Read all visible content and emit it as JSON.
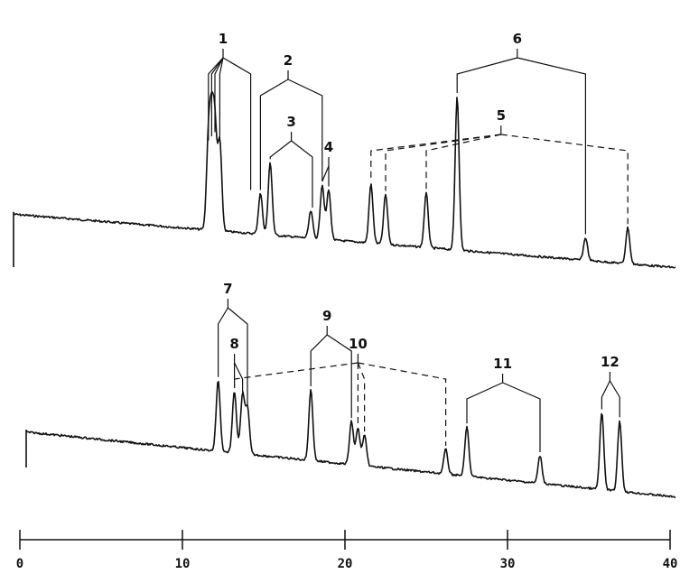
{
  "chart_data": {
    "type": "line",
    "description_axis": "retention time",
    "xlabel": "",
    "ylabel": "",
    "xlim": [
      0,
      40
    ],
    "x_ticks": [
      0,
      10,
      20,
      30,
      40
    ],
    "x_tick_labels": [
      "0",
      "10",
      "20",
      "30",
      "40"
    ],
    "grid": false,
    "traces": [
      {
        "name": "",
        "panel": "top",
        "peaks": [
          {
            "x": 11.6,
            "height": 0.38
          },
          {
            "x": 11.8,
            "height": 0.4
          },
          {
            "x": 12.0,
            "height": 0.42
          },
          {
            "x": 12.3,
            "height": 0.39
          },
          {
            "x": 14.8,
            "height": 0.18
          },
          {
            "x": 15.4,
            "height": 0.32
          },
          {
            "x": 17.9,
            "height": 0.12
          },
          {
            "x": 18.6,
            "height": 0.24
          },
          {
            "x": 19.0,
            "height": 0.22
          },
          {
            "x": 21.6,
            "height": 0.26
          },
          {
            "x": 22.5,
            "height": 0.22
          },
          {
            "x": 25.0,
            "height": 0.24
          },
          {
            "x": 26.9,
            "height": 0.68
          },
          {
            "x": 34.8,
            "height": 0.1
          },
          {
            "x": 37.4,
            "height": 0.16
          }
        ]
      },
      {
        "name": "",
        "panel": "bottom",
        "peaks": [
          {
            "x": 12.2,
            "height": 0.46
          },
          {
            "x": 13.2,
            "height": 0.4
          },
          {
            "x": 13.7,
            "height": 0.38
          },
          {
            "x": 14.0,
            "height": 0.3
          },
          {
            "x": 17.9,
            "height": 0.46
          },
          {
            "x": 20.4,
            "height": 0.28
          },
          {
            "x": 20.8,
            "height": 0.24
          },
          {
            "x": 21.2,
            "height": 0.2
          },
          {
            "x": 26.2,
            "height": 0.16
          },
          {
            "x": 27.5,
            "height": 0.32
          },
          {
            "x": 32.0,
            "height": 0.18
          },
          {
            "x": 35.8,
            "height": 0.5
          },
          {
            "x": 36.9,
            "height": 0.46
          }
        ]
      }
    ],
    "annotations": [
      {
        "label": "1",
        "panel": "top",
        "style": "solid",
        "x": 12.5,
        "targets": [
          11.6,
          11.8,
          12.0,
          12.3,
          14.2
        ]
      },
      {
        "label": "2",
        "panel": "top",
        "style": "solid",
        "x": 16.5,
        "targets": [
          14.8,
          18.6
        ]
      },
      {
        "label": "3",
        "panel": "top",
        "style": "solid",
        "x": 16.7,
        "targets": [
          15.4,
          18.0
        ]
      },
      {
        "label": "4",
        "panel": "top",
        "style": "solid",
        "x": 19.0,
        "targets": [
          18.6,
          19.0
        ]
      },
      {
        "label": "5",
        "panel": "top",
        "style": "dashed",
        "x": 29.6,
        "targets": [
          21.6,
          22.5,
          25.0,
          37.4
        ]
      },
      {
        "label": "6",
        "panel": "top",
        "style": "solid",
        "x": 30.6,
        "targets": [
          26.9,
          34.8
        ]
      },
      {
        "label": "7",
        "panel": "bottom",
        "style": "solid",
        "x": 12.8,
        "targets": [
          12.2,
          14.0
        ]
      },
      {
        "label": "8",
        "panel": "bottom",
        "style": "solid",
        "x": 13.2,
        "targets": [
          13.2,
          13.7
        ]
      },
      {
        "label": "9",
        "panel": "bottom",
        "style": "solid",
        "x": 18.9,
        "targets": [
          17.9,
          20.4
        ]
      },
      {
        "label": "10",
        "panel": "bottom",
        "style": "dashed",
        "x": 20.8,
        "targets": [
          13.2,
          20.8,
          21.2,
          26.2
        ]
      },
      {
        "label": "11",
        "panel": "bottom",
        "style": "solid",
        "x": 29.7,
        "targets": [
          27.5,
          32.0
        ]
      },
      {
        "label": "12",
        "panel": "bottom",
        "style": "solid",
        "x": 36.3,
        "targets": [
          35.8,
          36.9
        ]
      }
    ]
  }
}
